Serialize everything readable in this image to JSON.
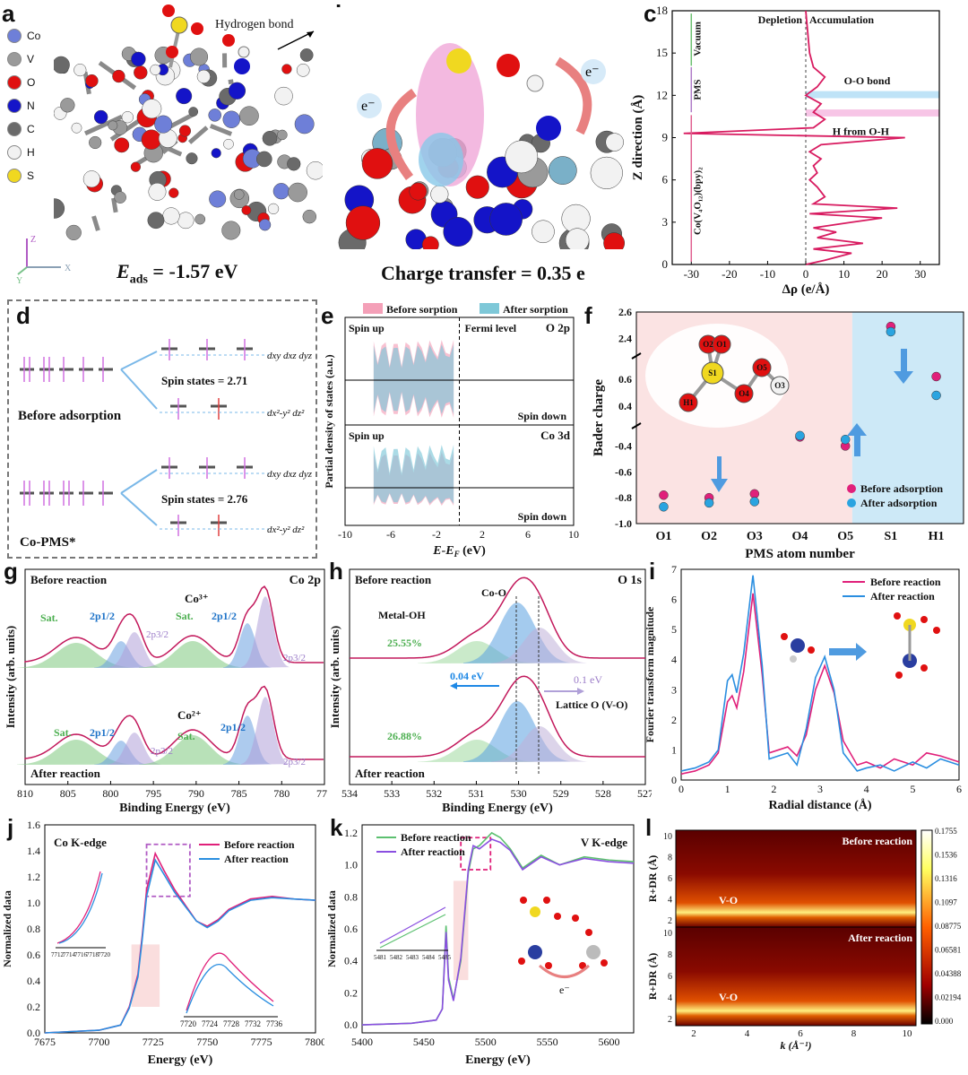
{
  "panels": {
    "a": {
      "letter": "a",
      "legend": [
        "Co",
        "V",
        "O",
        "N",
        "C",
        "H",
        "S"
      ],
      "legend_colors": [
        "#6e7fd8",
        "#9a9a9a",
        "#e01010",
        "#1414c8",
        "#6a6a6a",
        "#f2f2f2",
        "#f0d820"
      ],
      "annotation": "Hydrogen bond",
      "energy_label": "E",
      "energy_sub": "ads",
      "energy_value": " = -1.57 eV",
      "axis_z": "Z",
      "axis_y": "Y",
      "axis_x": "X"
    },
    "b": {
      "letter": "b",
      "e_left": "e⁻",
      "e_right": "e⁻",
      "caption": "Charge transfer = 0.35 e"
    },
    "c": {
      "letter": "c",
      "xlabel": "Δρ (e/Å)",
      "ylabel": "Z direction (Å)",
      "depletion": "Depletion",
      "accumulation": "Accumulation",
      "vacuum": "Vacuum",
      "pms": "PMS",
      "substrate": "Co(V₄O₁₂)(bpy)₂",
      "oo_bond": "O-O bond",
      "h_from": "H from O-H",
      "xticks": [
        "-30",
        "-20",
        "-10",
        "0",
        "10",
        "20",
        "30"
      ],
      "yticks": [
        "0",
        "3",
        "6",
        "9",
        "12",
        "15",
        "18"
      ]
    },
    "d": {
      "letter": "d",
      "before": "Before adsorption",
      "after": "Co-PMS*",
      "spin1": "Spin states = 2.71",
      "spin2": "Spin states = 2.76",
      "t2g": "dxy dxz dyz",
      "eg": "dx²-y² dz²"
    },
    "e": {
      "letter": "e",
      "legend_before": "Before sorption",
      "legend_after": "After sorption",
      "ylabel": "Partial density of states (a.u.)",
      "xlabel": "E-E",
      "xlabel_sub": "F",
      "xlabel_unit": " (eV)",
      "spin_up": "Spin up",
      "spin_down": "Spin down",
      "fermi": "Fermi level",
      "o2p": "O 2p",
      "co3d": "Co 3d",
      "xticks": [
        "-10",
        "-6",
        "-2",
        "2",
        "6",
        "10"
      ]
    },
    "f": {
      "letter": "f",
      "ylabel": "Bader charge",
      "xlabel": "PMS atom number",
      "legend_before": "Before adsorption",
      "legend_after": "After adsorption",
      "atoms": [
        "O1",
        "O2",
        "O3",
        "O4",
        "O5",
        "S1",
        "H1"
      ],
      "yticks_top": [
        "2.4",
        "2.6"
      ],
      "yticks_mid": [
        "0.4",
        "0.6"
      ],
      "yticks_bot": [
        "-1.0",
        "-0.8",
        "-0.6",
        "-0.4"
      ],
      "mol_labels": [
        "O2",
        "O1",
        "S1",
        "O5",
        "H1",
        "O4",
        "O3"
      ]
    },
    "g": {
      "letter": "g",
      "title": "Co 2p",
      "before": "Before reaction",
      "after": "After reaction",
      "co3": "Co³⁺",
      "co2": "Co²⁺",
      "sat": "Sat.",
      "p12": "2p1/2",
      "p32": "2p3/2",
      "xlabel": "Binding Energy (eV)",
      "ylabel": "Intensity (arb. units)",
      "xticks": [
        "810",
        "805",
        "800",
        "795",
        "790",
        "785",
        "780",
        "775"
      ]
    },
    "h": {
      "letter": "h",
      "title": "O 1s",
      "before": "Before reaction",
      "after": "After reaction",
      "coo": "Co-O",
      "metaloh": "Metal-OH",
      "pct1": "25.55%",
      "pct2": "26.88%",
      "shift1": "0.04 eV",
      "shift2": "0.1 eV",
      "lattice": "Lattice O (V-O)",
      "xlabel": "Binding Energy (eV)",
      "ylabel": "Intensity (arb. units)",
      "xticks": [
        "534",
        "533",
        "532",
        "531",
        "530",
        "529",
        "528",
        "527"
      ]
    },
    "i": {
      "letter": "i",
      "legend_before": "Before reaction",
      "legend_after": "After reaction",
      "xlabel": "Radial distance (Å)",
      "ylabel": "Fourier transform magnitude",
      "xticks": [
        "0",
        "1",
        "2",
        "3",
        "4",
        "5",
        "6"
      ],
      "yticks": [
        "0",
        "1",
        "2",
        "3",
        "4",
        "5",
        "6",
        "7"
      ]
    },
    "j": {
      "letter": "j",
      "title": "Co K-edge",
      "legend_before": "Before reaction",
      "legend_after": "After reaction",
      "xlabel": "Energy (eV)",
      "ylabel": "Normalized data",
      "xticks": [
        "7675",
        "7700",
        "7725",
        "7750",
        "7775",
        "7800"
      ],
      "yticks": [
        "0.0",
        "0.2",
        "0.4",
        "0.6",
        "0.8",
        "1.0",
        "1.2",
        "1.4",
        "1.6"
      ],
      "inset1_ticks": [
        "7712",
        "7714",
        "7716",
        "7718",
        "7720"
      ],
      "inset2_ticks": [
        "7720",
        "7724",
        "7728",
        "7732",
        "7736"
      ]
    },
    "k": {
      "letter": "k",
      "title": "V K-edge",
      "legend_before": "Before reaction",
      "legend_after": "After reaction",
      "xlabel": "Energy (eV)",
      "ylabel": "Normalized data",
      "xticks": [
        "5400",
        "5450",
        "5500",
        "5550",
        "5600"
      ],
      "yticks": [
        "0.0",
        "0.2",
        "0.4",
        "0.6",
        "0.8",
        "1.0",
        "1.2"
      ],
      "inset_ticks": [
        "5481",
        "5482",
        "5483",
        "5484",
        "5485"
      ],
      "e": "e⁻"
    },
    "l": {
      "letter": "l",
      "before": "Before reaction",
      "after": "After reaction",
      "vo": "V-O",
      "ylabel": "R+DR (Å)",
      "xlabel": "k (Å⁻¹)",
      "colorbar": [
        "0.1755",
        "0.1536",
        "0.1316",
        "0.1097",
        "0.08775",
        "0.06581",
        "0.04388",
        "0.02194",
        "0.000"
      ],
      "xticks": [
        "2",
        "4",
        "6",
        "8",
        "10"
      ],
      "yticks": [
        "2",
        "4",
        "6",
        "8",
        "10"
      ]
    }
  },
  "chart_data": [
    {
      "id": "c",
      "type": "line",
      "title": "",
      "xlabel": "Δρ (e/Å)",
      "ylabel": "Z direction (Å)",
      "xlim": [
        -35,
        35
      ],
      "ylim": [
        0,
        18
      ],
      "points": [
        [
          0,
          0
        ],
        [
          5,
          0.3
        ],
        [
          12,
          0.8
        ],
        [
          2,
          1.1
        ],
        [
          15,
          1.5
        ],
        [
          3,
          1.9
        ],
        [
          8,
          2.3
        ],
        [
          2,
          2.6
        ],
        [
          12,
          3.0
        ],
        [
          20,
          3.3
        ],
        [
          1,
          3.6
        ],
        [
          24,
          4.0
        ],
        [
          2,
          4.3
        ],
        [
          5,
          4.8
        ],
        [
          3,
          5.5
        ],
        [
          1,
          6.0
        ],
        [
          3,
          6.5
        ],
        [
          2,
          7.0
        ],
        [
          4,
          7.5
        ],
        [
          1,
          8.0
        ],
        [
          4,
          8.5
        ],
        [
          26,
          9.0
        ],
        [
          -32,
          9.3
        ],
        [
          2,
          9.7
        ],
        [
          5,
          10.3
        ],
        [
          2,
          10.8
        ],
        [
          4,
          11.4
        ],
        [
          0,
          12.0
        ],
        [
          3,
          12.6
        ],
        [
          5,
          13.3
        ],
        [
          2,
          14.0
        ],
        [
          1,
          15.0
        ],
        [
          0.5,
          16.5
        ],
        [
          0,
          18
        ]
      ]
    },
    {
      "id": "f",
      "type": "scatter",
      "title": "",
      "xlabel": "PMS atom number",
      "ylabel": "Bader charge",
      "categories": [
        "O1",
        "O2",
        "O3",
        "O4",
        "O5",
        "S1",
        "H1"
      ],
      "series": [
        {
          "name": "Before adsorption",
          "values": [
            -0.78,
            -0.8,
            -0.77,
            -0.33,
            -0.4,
            2.49,
            0.62
          ]
        },
        {
          "name": "After adsorption",
          "values": [
            -0.87,
            -0.84,
            -0.83,
            -0.32,
            -0.35,
            2.45,
            0.48
          ]
        }
      ]
    },
    {
      "id": "i",
      "type": "line",
      "title": "",
      "xlabel": "Radial distance (Å)",
      "ylabel": "Fourier transform magnitude",
      "xlim": [
        0,
        6
      ],
      "ylim": [
        0,
        7
      ],
      "x": [
        0,
        0.3,
        0.6,
        0.8,
        1.0,
        1.1,
        1.2,
        1.35,
        1.55,
        1.75,
        1.9,
        2.1,
        2.3,
        2.5,
        2.7,
        2.9,
        3.1,
        3.3,
        3.5,
        3.8,
        4.0,
        4.3,
        4.6,
        5.0,
        5.3,
        5.6,
        6.0
      ],
      "series": [
        {
          "name": "Before reaction",
          "values": [
            0.2,
            0.3,
            0.5,
            0.9,
            2.6,
            2.8,
            2.4,
            3.6,
            6.2,
            3.5,
            0.9,
            1.0,
            1.1,
            0.8,
            1.5,
            3.0,
            3.8,
            2.9,
            1.3,
            0.5,
            0.6,
            0.4,
            0.7,
            0.5,
            0.9,
            0.8,
            0.6
          ]
        },
        {
          "name": "After reaction",
          "values": [
            0.3,
            0.4,
            0.6,
            1.0,
            3.3,
            3.5,
            2.9,
            4.2,
            6.8,
            3.8,
            0.7,
            0.8,
            0.9,
            0.5,
            1.7,
            3.4,
            4.1,
            3.0,
            0.9,
            0.3,
            0.4,
            0.5,
            0.3,
            0.6,
            0.4,
            0.7,
            0.5
          ]
        }
      ]
    },
    {
      "id": "j",
      "type": "line",
      "title": "Co K-edge",
      "xlabel": "Energy (eV)",
      "ylabel": "Normalized data",
      "xlim": [
        7675,
        7800
      ],
      "ylim": [
        0,
        1.6
      ],
      "x": [
        7675,
        7700,
        7710,
        7714,
        7718,
        7720,
        7722,
        7726,
        7730,
        7735,
        7740,
        7745,
        7750,
        7755,
        7760,
        7770,
        7780,
        7790,
        7800
      ],
      "series": [
        {
          "name": "Before reaction",
          "values": [
            0.0,
            0.02,
            0.06,
            0.2,
            0.45,
            0.75,
            1.1,
            1.38,
            1.25,
            1.1,
            0.98,
            0.86,
            0.82,
            0.87,
            0.95,
            1.03,
            1.05,
            1.03,
            1.02
          ]
        },
        {
          "name": "After reaction",
          "values": [
            0.0,
            0.02,
            0.06,
            0.19,
            0.43,
            0.72,
            1.05,
            1.33,
            1.22,
            1.08,
            0.97,
            0.86,
            0.81,
            0.86,
            0.94,
            1.02,
            1.04,
            1.03,
            1.02
          ]
        }
      ]
    },
    {
      "id": "k",
      "type": "line",
      "title": "V K-edge",
      "xlabel": "Energy (eV)",
      "ylabel": "Normalized data",
      "xlim": [
        5400,
        5620
      ],
      "ylim": [
        -0.05,
        1.25
      ],
      "x": [
        5400,
        5440,
        5460,
        5465,
        5468,
        5470,
        5474,
        5480,
        5486,
        5490,
        5495,
        5500,
        5505,
        5512,
        5520,
        5530,
        5545,
        5560,
        5580,
        5600,
        5620
      ],
      "series": [
        {
          "name": "Before reaction",
          "values": [
            0.0,
            0.01,
            0.03,
            0.1,
            0.62,
            0.3,
            0.16,
            0.4,
            0.95,
            1.1,
            1.12,
            1.16,
            1.2,
            1.17,
            1.1,
            0.98,
            1.06,
            1.0,
            1.05,
            1.03,
            1.02
          ]
        },
        {
          "name": "After reaction",
          "values": [
            0.0,
            0.01,
            0.03,
            0.1,
            0.58,
            0.28,
            0.15,
            0.42,
            0.97,
            1.12,
            1.1,
            1.13,
            1.16,
            1.14,
            1.09,
            0.97,
            1.05,
            1.0,
            1.04,
            1.02,
            1.01
          ]
        }
      ]
    }
  ]
}
